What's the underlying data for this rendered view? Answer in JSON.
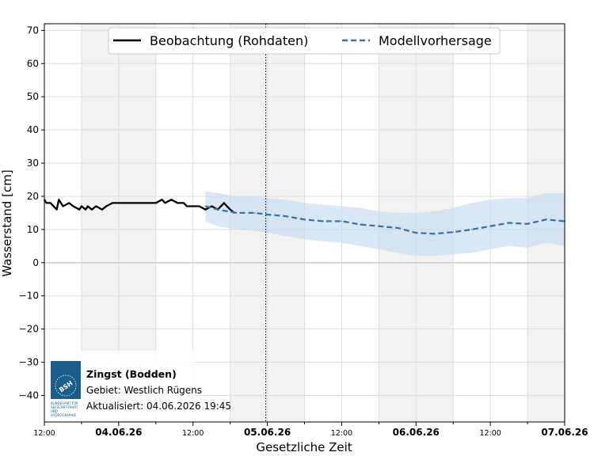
{
  "chart_data": {
    "type": "line",
    "xlabel": "Gesetzliche Zeit",
    "ylabel": "Wasserstand [cm]",
    "ylim": [
      -48,
      72
    ],
    "yticks": [
      -40,
      -30,
      -20,
      -10,
      0,
      10,
      20,
      30,
      40,
      50,
      60,
      70
    ],
    "xlim_hours": [
      0,
      84
    ],
    "x_ticks": [
      {
        "label": "12:00",
        "bold": false
      },
      {
        "label": "04.06.26",
        "bold": true
      },
      {
        "label": "12:00",
        "bold": false
      },
      {
        "label": "05.06.26",
        "bold": true
      },
      {
        "label": "12:00",
        "bold": false
      },
      {
        "label": "06.06.26",
        "bold": true
      },
      {
        "label": "12:00",
        "bold": false
      },
      {
        "label": "07.06.26",
        "bold": true
      }
    ],
    "now_marker": "04.06.2026 19:45",
    "grid": true,
    "legend_position": "top-center",
    "series": [
      {
        "name": "Beobachtung (Rohdaten)",
        "style": "solid",
        "color": "#000000",
        "x": [
          "03.06. 12:00",
          "03.06. 12:20",
          "03.06. 13:00",
          "03.06. 14:00",
          "03.06. 14:20",
          "03.06. 15:00",
          "03.06. 16:00",
          "03.06. 16:40",
          "03.06. 17:40",
          "03.06. 18:00",
          "03.06. 18:40",
          "03.06. 19:00",
          "03.06. 19:40",
          "03.06. 20:20",
          "03.06. 21:20",
          "03.06. 22:00",
          "03.06. 23:00",
          "04.06. 00:00",
          "04.06. 01:00",
          "04.06. 02:00",
          "04.06. 03:00",
          "04.06. 04:00",
          "04.06. 05:00",
          "04.06. 06:00",
          "04.06. 07:00",
          "04.06. 07:30",
          "04.06. 08:30",
          "04.06. 09:30",
          "04.06. 10:30",
          "04.06. 11:00",
          "04.06. 12:00",
          "04.06. 13:00",
          "04.06. 14:00",
          "04.06. 15:00",
          "04.06. 16:00",
          "04.06. 17:00",
          "04.06. 18:00",
          "04.06. 18:40"
        ],
        "values": [
          19,
          18,
          18,
          16,
          19,
          17,
          18,
          17,
          16,
          17,
          16,
          17,
          16,
          17,
          16,
          17,
          18,
          18,
          18,
          18,
          18,
          18,
          18,
          18,
          19,
          18,
          19,
          18,
          18,
          17,
          17,
          17,
          16,
          17,
          16,
          18,
          16,
          15
        ]
      },
      {
        "name": "Modellvorhersage",
        "style": "dashed",
        "color": "#3c72aa",
        "x": [
          "04.06. 14:00",
          "04.06. 16:00",
          "04.06. 19:00",
          "04.06. 22:00",
          "05.06. 00:00",
          "05.06. 03:00",
          "05.06. 06:00",
          "05.06. 09:00",
          "05.06. 12:00",
          "05.06. 15:00",
          "05.06. 18:00",
          "05.06. 21:00",
          "06.06. 00:00",
          "06.06. 03:00",
          "06.06. 06:00",
          "06.06. 09:00",
          "06.06. 12:00",
          "06.06. 15:00",
          "06.06. 18:00",
          "06.06. 21:00",
          "07.06. 00:00"
        ],
        "values": [
          17,
          16,
          15,
          15,
          14.5,
          14,
          13,
          12.5,
          12.5,
          11.5,
          11,
          10.5,
          9,
          8.7,
          9.2,
          10,
          11,
          12,
          11.7,
          13,
          12.5
        ],
        "band_upper": [
          21.5,
          21,
          20,
          20,
          19.5,
          19,
          18,
          17.5,
          17,
          16.5,
          15.5,
          15,
          15,
          15.5,
          16.5,
          18,
          19,
          19.5,
          19.5,
          21,
          21
        ],
        "band_lower": [
          12.5,
          11,
          10,
          9.5,
          9,
          8,
          7,
          6.5,
          6,
          5,
          4,
          3,
          2,
          2,
          2.5,
          3,
          4,
          5,
          4.5,
          6,
          5
        ]
      }
    ]
  },
  "info": {
    "station": "Zingst (Bodden)",
    "region": "Gebiet: Westlich Rügens",
    "updated": "Aktualisiert: 04.06.2026 19:45"
  },
  "logo": {
    "label": "BSH",
    "caption": [
      "BUNDESAMT FÜR",
      "SEESCHIFFFAHRT",
      "UND",
      "HYDROGRAPHIE"
    ],
    "color": "#1b5e8a"
  },
  "colors": {
    "night_shade": "#f2f2f2",
    "band_fill": "#c6dbef",
    "grid": "#dddddd"
  }
}
